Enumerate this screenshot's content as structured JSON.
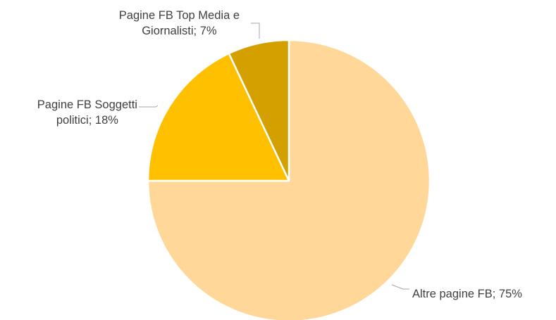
{
  "chart_data": {
    "type": "pie",
    "title": "",
    "start_angle_deg": 0,
    "direction": "clockwise",
    "slices": [
      {
        "name": "Altre pagine FB",
        "value": 75,
        "color": "#ffd899",
        "label_lines": [
          "Altre pagine FB; 75%"
        ]
      },
      {
        "name": "Pagine FB Soggetti politici",
        "value": 18,
        "color": "#ffc000",
        "label_lines": [
          "Pagine FB Soggetti",
          "politici; 18%"
        ]
      },
      {
        "name": "Pagine FB Top Media e Giornalisti",
        "value": 7,
        "color": "#d4a000",
        "label_lines": [
          "Pagine FB Top Media e",
          "Giornalisti; 7%"
        ]
      }
    ]
  }
}
